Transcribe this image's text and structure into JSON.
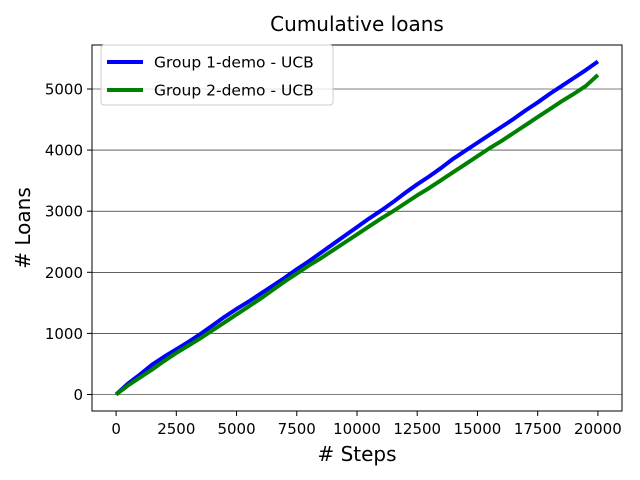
{
  "chart_data": {
    "type": "line",
    "title": "Cumulative loans",
    "xlabel": "# Steps",
    "ylabel": "# Loans",
    "xlim": [
      -1000,
      21000
    ],
    "ylim": [
      -270,
      5720
    ],
    "xticks": [
      0,
      2500,
      5000,
      7500,
      10000,
      12500,
      15000,
      17500,
      20000
    ],
    "xtick_labels": [
      "0",
      "2500",
      "5000",
      "7500",
      "10000",
      "12500",
      "15000",
      "17500",
      "20000"
    ],
    "yticks": [
      0,
      1000,
      2000,
      3000,
      4000,
      5000
    ],
    "ytick_labels": [
      "0",
      "1000",
      "2000",
      "3000",
      "4000",
      "5000"
    ],
    "grid": "horizontal",
    "legend_position": "top-left",
    "series": [
      {
        "name": "Group 1-demo - UCB",
        "color": "#0000ff",
        "x": [
          0,
          500,
          1000,
          1500,
          2000,
          2500,
          3000,
          3500,
          4000,
          4500,
          5000,
          5500,
          6000,
          6500,
          7000,
          7500,
          8000,
          8500,
          9000,
          9500,
          10000,
          10500,
          11000,
          11500,
          12000,
          12500,
          13000,
          13500,
          14000,
          14500,
          15000,
          15500,
          16000,
          16500,
          17000,
          17500,
          18000,
          18500,
          19000,
          19500,
          20000
        ],
        "y": [
          0,
          180,
          330,
          490,
          620,
          740,
          860,
          990,
          1130,
          1270,
          1400,
          1520,
          1650,
          1780,
          1910,
          2050,
          2180,
          2320,
          2460,
          2600,
          2740,
          2880,
          3010,
          3150,
          3300,
          3440,
          3570,
          3710,
          3860,
          3990,
          4120,
          4250,
          4380,
          4510,
          4650,
          4780,
          4920,
          5050,
          5180,
          5310,
          5450
        ]
      },
      {
        "name": "Group 2-demo - UCB",
        "color": "#008000",
        "x": [
          0,
          500,
          1000,
          1500,
          2000,
          2500,
          3000,
          3500,
          4000,
          4500,
          5000,
          5500,
          6000,
          6500,
          7000,
          7500,
          8000,
          8500,
          9000,
          9500,
          10000,
          10500,
          11000,
          11500,
          12000,
          12500,
          13000,
          13500,
          14000,
          14500,
          15000,
          15500,
          16000,
          16500,
          17000,
          17500,
          18000,
          18500,
          19000,
          19500,
          20000
        ],
        "y": [
          0,
          150,
          280,
          410,
          550,
          680,
          800,
          920,
          1050,
          1180,
          1310,
          1440,
          1570,
          1710,
          1850,
          1980,
          2110,
          2230,
          2360,
          2490,
          2620,
          2750,
          2880,
          3000,
          3130,
          3260,
          3380,
          3510,
          3640,
          3770,
          3900,
          4030,
          4150,
          4280,
          4410,
          4540,
          4670,
          4800,
          4920,
          5050,
          5230
        ]
      }
    ]
  }
}
